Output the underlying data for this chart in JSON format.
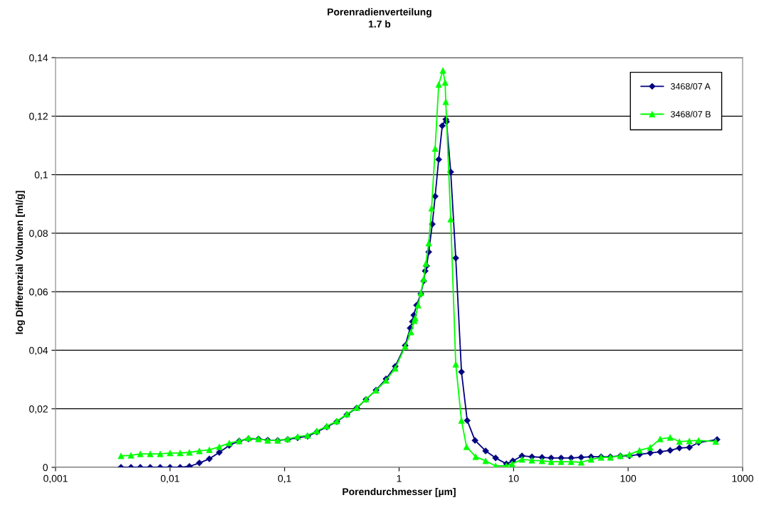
{
  "chart_data": {
    "type": "line",
    "title": "Porenradienverteilung",
    "subtitle": "1.7 b",
    "xlabel": "Porendurchmesser [µm]",
    "ylabel": "log Differenzial Volumen [ml/g]",
    "log": "x",
    "xlim": [
      0.001,
      1000
    ],
    "xticks": [
      {
        "value": 0.001,
        "label": "0,001"
      },
      {
        "value": 0.01,
        "label": "0,01"
      },
      {
        "value": 0.1,
        "label": "0,1"
      },
      1,
      10,
      100,
      1000
    ],
    "ylim": [
      0,
      0.14
    ],
    "yticks": [
      0,
      {
        "value": 0.02,
        "label": "0,02"
      },
      {
        "value": 0.04,
        "label": "0,04"
      },
      {
        "value": 0.06,
        "label": "0,06"
      },
      {
        "value": 0.08,
        "label": "0,08"
      },
      {
        "value": 0.1,
        "label": "0,1"
      },
      {
        "value": 0.12,
        "label": "0,12"
      },
      {
        "value": 0.14,
        "label": "0,14"
      }
    ],
    "grid": "y",
    "legend": "top right",
    "line_style": "solid",
    "series": [
      {
        "name": "3468/07 A",
        "color": "#000080",
        "marker": "diamond",
        "x": [
          0.00373,
          0.00456,
          0.0055,
          0.00671,
          0.0082,
          0.01,
          0.01225,
          0.01476,
          0.01803,
          0.02204,
          0.02692,
          0.03289,
          0.04018,
          0.04842,
          0.05916,
          0.07129,
          0.0871,
          0.1064,
          0.13,
          0.1589,
          0.1914,
          0.2339,
          0.2858,
          0.3499,
          0.4276,
          0.514,
          0.6295,
          0.7691,
          0.925,
          1.13,
          1.25,
          1.306,
          1.343,
          1.422,
          1.549,
          1.641,
          1.69,
          1.738,
          1.815,
          1.95,
          2.065,
          2.218,
          2.382,
          2.558,
          2.594,
          2.825,
          3.126,
          3.507,
          3.935,
          4.603,
          5.702,
          6.966,
          8.65,
          9.84,
          11.83,
          14.45,
          17.7,
          21.28,
          26.0,
          31.8,
          38.9,
          47.5,
          58.1,
          70.0,
          85.5,
          102.8,
          125.9,
          156,
          190.5,
          232.8,
          280.5,
          342.8,
          413,
          598
        ],
        "values": [
          0,
          0,
          0,
          0,
          0,
          0,
          0,
          0.0003,
          0.0015,
          0.0029,
          0.0051,
          0.0075,
          0.009,
          0.0097,
          0.0097,
          0.0093,
          0.0092,
          0.0095,
          0.0101,
          0.0106,
          0.0121,
          0.0138,
          0.0156,
          0.018,
          0.0203,
          0.0232,
          0.0264,
          0.0302,
          0.0345,
          0.0416,
          0.0476,
          0.0498,
          0.052,
          0.0554,
          0.0593,
          0.0637,
          0.0671,
          0.0688,
          0.0736,
          0.0831,
          0.0926,
          0.1052,
          0.1167,
          0.1189,
          0.1181,
          0.1009,
          0.0715,
          0.0326,
          0.016,
          0.0092,
          0.0056,
          0.0032,
          0.0012,
          0.0022,
          0.0039,
          0.0036,
          0.0034,
          0.0032,
          0.0032,
          0.0032,
          0.0034,
          0.0036,
          0.0036,
          0.0036,
          0.0039,
          0.0039,
          0.0044,
          0.0049,
          0.0053,
          0.0058,
          0.0066,
          0.0068,
          0.0085,
          0.0095
        ]
      },
      {
        "name": "3468/07 B",
        "color": "#00ff00",
        "marker": "triangle",
        "x": [
          0.00373,
          0.00456,
          0.0055,
          0.00671,
          0.0082,
          0.01,
          0.01225,
          0.01476,
          0.01803,
          0.02204,
          0.02692,
          0.03289,
          0.04018,
          0.04842,
          0.05916,
          0.07129,
          0.0871,
          0.1064,
          0.13,
          0.1589,
          0.1914,
          0.2339,
          0.2858,
          0.3499,
          0.4276,
          0.514,
          0.6295,
          0.7691,
          0.925,
          1.13,
          1.268,
          1.362,
          1.383,
          1.465,
          1.549,
          1.641,
          1.714,
          1.815,
          1.923,
          2.065,
          2.218,
          2.415,
          2.523,
          2.558,
          2.825,
          3.126,
          3.507,
          3.882,
          4.667,
          5.702,
          6.966,
          8.65,
          9.7,
          11.83,
          14.45,
          17.7,
          21.28,
          26.0,
          31.8,
          38.9,
          47.5,
          58.1,
          70.0,
          85.5,
          102.8,
          125.9,
          156,
          190.5,
          232.8,
          280.5,
          342.8,
          413,
          582
        ],
        "values": [
          0.0039,
          0.0041,
          0.0046,
          0.0046,
          0.0046,
          0.0049,
          0.0049,
          0.0051,
          0.0056,
          0.006,
          0.007,
          0.0083,
          0.009,
          0.01,
          0.0097,
          0.0092,
          0.0092,
          0.0097,
          0.0105,
          0.0109,
          0.0124,
          0.0141,
          0.0158,
          0.0182,
          0.0204,
          0.0233,
          0.0263,
          0.0297,
          0.0338,
          0.0413,
          0.0462,
          0.0501,
          0.051,
          0.0554,
          0.0596,
          0.0644,
          0.0696,
          0.0766,
          0.0885,
          0.1089,
          0.1308,
          0.1356,
          0.1315,
          0.1249,
          0.0848,
          0.0352,
          0.016,
          0.007,
          0.0036,
          0.0022,
          0.0005,
          0.0005,
          0.0012,
          0.0027,
          0.0024,
          0.0022,
          0.0019,
          0.0019,
          0.0019,
          0.0017,
          0.0027,
          0.0034,
          0.0034,
          0.0039,
          0.0044,
          0.0058,
          0.0068,
          0.0097,
          0.0102,
          0.0088,
          0.009,
          0.0092,
          0.0088
        ]
      }
    ]
  }
}
